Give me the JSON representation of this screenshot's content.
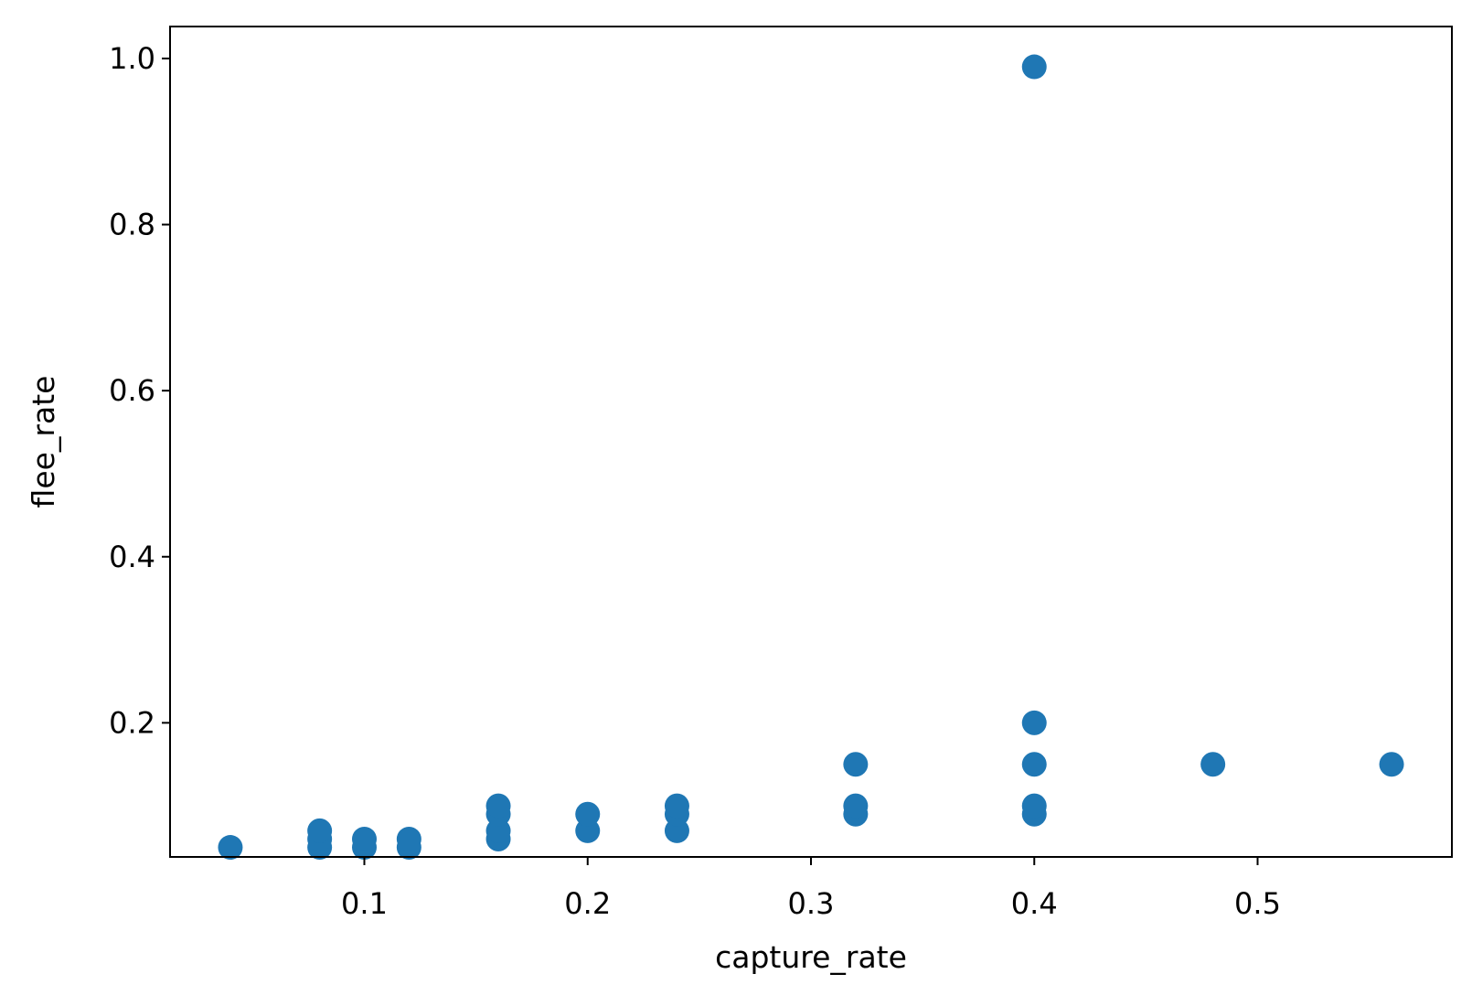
{
  "chart_data": {
    "type": "scatter",
    "title": "",
    "xlabel": "capture_rate",
    "ylabel": "flee_rate",
    "xlim": [
      0.013,
      0.587
    ],
    "ylim": [
      0.0385,
      1.0385
    ],
    "xticks": [
      {
        "value": 0.1,
        "label": "0.1"
      },
      {
        "value": 0.2,
        "label": "0.2"
      },
      {
        "value": 0.3,
        "label": "0.3"
      },
      {
        "value": 0.4,
        "label": "0.4"
      },
      {
        "value": 0.5,
        "label": "0.5"
      }
    ],
    "yticks": [
      {
        "value": 0.2,
        "label": "0.2"
      },
      {
        "value": 0.4,
        "label": "0.4"
      },
      {
        "value": 0.6,
        "label": "0.6"
      },
      {
        "value": 0.8,
        "label": "0.8"
      },
      {
        "value": 1.0,
        "label": "1.0"
      }
    ],
    "grid": false,
    "legend": false,
    "marker_color": "#1f77b4",
    "points": [
      {
        "x": 0.04,
        "y": 0.05
      },
      {
        "x": 0.08,
        "y": 0.05
      },
      {
        "x": 0.08,
        "y": 0.06
      },
      {
        "x": 0.08,
        "y": 0.07
      },
      {
        "x": 0.1,
        "y": 0.05
      },
      {
        "x": 0.1,
        "y": 0.06
      },
      {
        "x": 0.12,
        "y": 0.05
      },
      {
        "x": 0.12,
        "y": 0.06
      },
      {
        "x": 0.16,
        "y": 0.06
      },
      {
        "x": 0.16,
        "y": 0.07
      },
      {
        "x": 0.16,
        "y": 0.09
      },
      {
        "x": 0.16,
        "y": 0.1
      },
      {
        "x": 0.2,
        "y": 0.07
      },
      {
        "x": 0.2,
        "y": 0.09
      },
      {
        "x": 0.24,
        "y": 0.07
      },
      {
        "x": 0.24,
        "y": 0.09
      },
      {
        "x": 0.24,
        "y": 0.1
      },
      {
        "x": 0.32,
        "y": 0.09
      },
      {
        "x": 0.32,
        "y": 0.1
      },
      {
        "x": 0.32,
        "y": 0.15
      },
      {
        "x": 0.4,
        "y": 0.09
      },
      {
        "x": 0.4,
        "y": 0.1
      },
      {
        "x": 0.4,
        "y": 0.15
      },
      {
        "x": 0.4,
        "y": 0.2
      },
      {
        "x": 0.4,
        "y": 0.99
      },
      {
        "x": 0.48,
        "y": 0.15
      },
      {
        "x": 0.56,
        "y": 0.15
      }
    ]
  }
}
